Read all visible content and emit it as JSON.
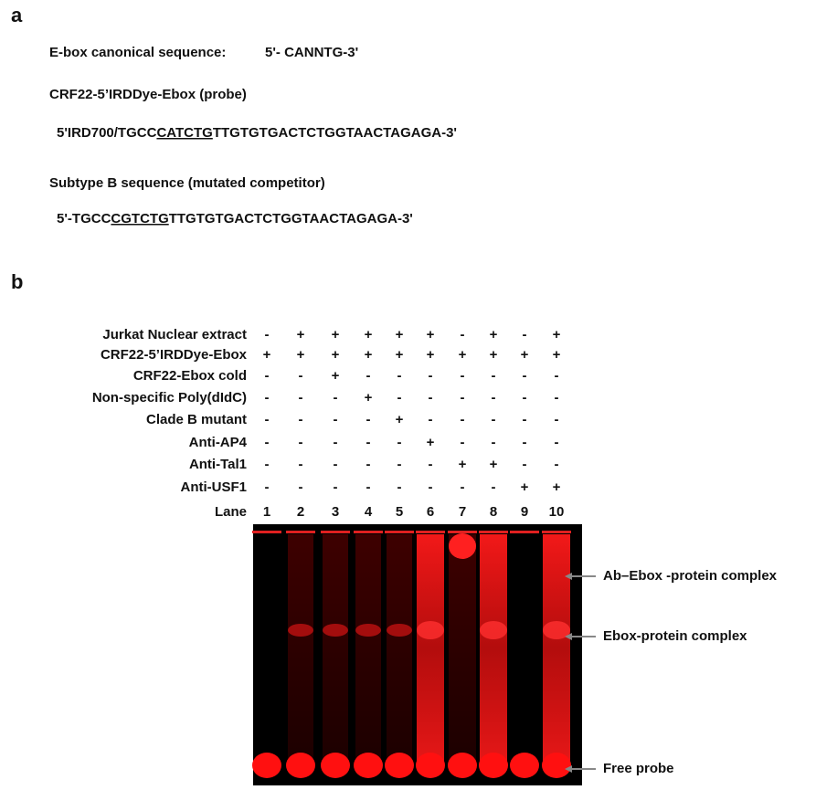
{
  "panel_a": {
    "label": "a",
    "canonical": {
      "name": "E-box canonical sequence:",
      "sequence": "5'- CANNTG-3'"
    },
    "probe": {
      "title": "CRF22-5’IRDDye-Ebox (probe)",
      "prefix": "5'IRD700/TGCC",
      "motif": "CATCTG",
      "suffix": "TTGTGTGACTCTGGTAACTAGAGA-3'"
    },
    "competitor": {
      "title": "Subtype B sequence (mutated competitor)",
      "prefix": "5'-TGCC",
      "motif": "CGTCTG",
      "suffix": "TTGTGTGACTCTGGTAACTAGAGA-3'"
    }
  },
  "panel_b": {
    "label": "b",
    "conditions": [
      {
        "label": "Jurkat Nuclear extract",
        "lanes": [
          "-",
          "+",
          "+",
          "+",
          "+",
          "+",
          "-",
          "+",
          "-",
          "+"
        ]
      },
      {
        "label": "CRF22-5’IRDDye-Ebox",
        "lanes": [
          "+",
          "+",
          "+",
          "+",
          "+",
          "+",
          "+",
          "+",
          "+",
          "+"
        ]
      },
      {
        "label": "CRF22-Ebox cold",
        "lanes": [
          "-",
          "-",
          "+",
          "-",
          "-",
          "-",
          "-",
          "-",
          "-",
          "-"
        ]
      },
      {
        "label": "Non-specific Poly(dIdC)",
        "lanes": [
          "-",
          "-",
          "-",
          "+",
          "-",
          "-",
          "-",
          "-",
          "-",
          "-"
        ]
      },
      {
        "label": "Clade B mutant",
        "lanes": [
          "-",
          "-",
          "-",
          "-",
          "+",
          "-",
          "-",
          "-",
          "-",
          "-"
        ]
      },
      {
        "label": "Anti-AP4",
        "lanes": [
          "-",
          "-",
          "-",
          "-",
          "-",
          "+",
          "-",
          "-",
          "-",
          "-"
        ]
      },
      {
        "label": "Anti-Tal1",
        "lanes": [
          "-",
          "-",
          "-",
          "-",
          "-",
          "-",
          "+",
          "+",
          "-",
          "-"
        ]
      },
      {
        "label": "Anti-USF1",
        "lanes": [
          "-",
          "-",
          "-",
          "-",
          "-",
          "-",
          "-",
          "-",
          "+",
          "+"
        ]
      }
    ],
    "lane_label": "Lane",
    "lanes": [
      1,
      2,
      3,
      4,
      5,
      6,
      7,
      8,
      9,
      10
    ],
    "annotations": [
      "Ab–Ebox -protein complex",
      "Ebox-protein complex",
      "Free probe"
    ]
  }
}
